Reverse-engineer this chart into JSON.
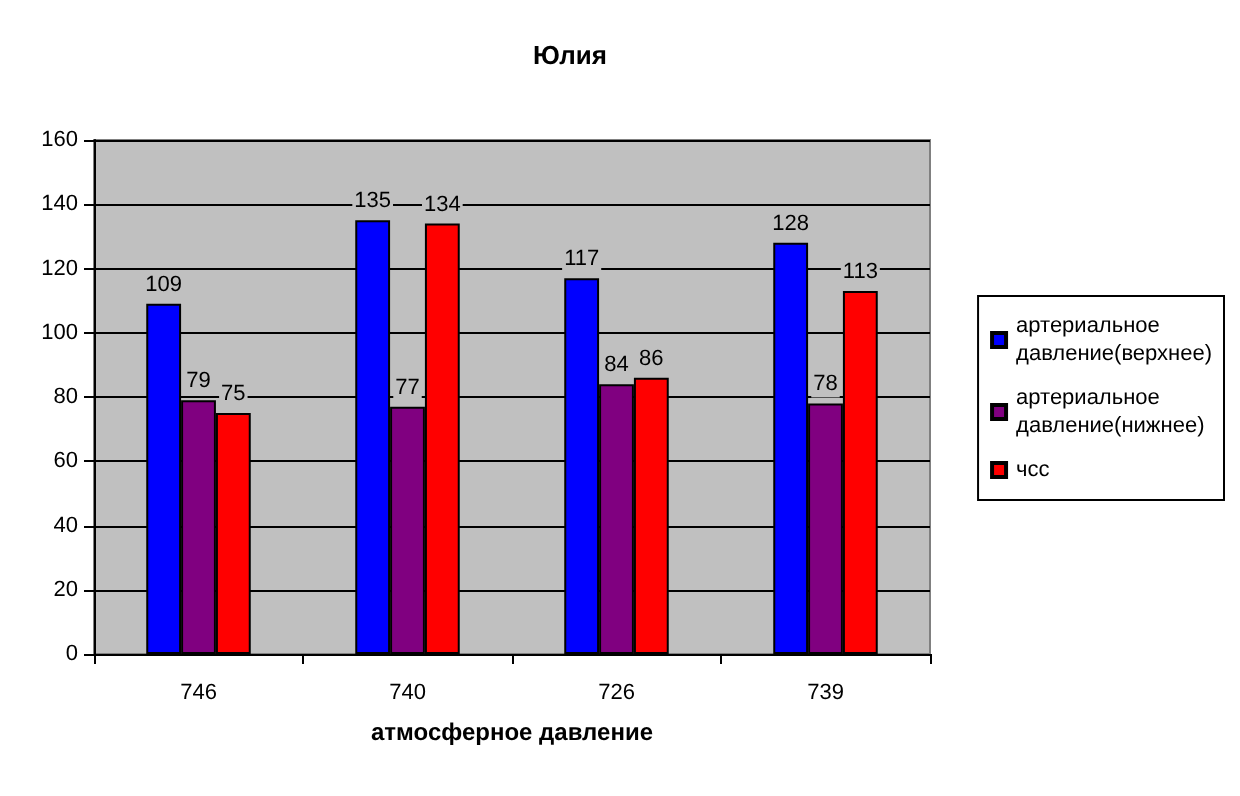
{
  "chart_data": {
    "type": "bar",
    "title": "Юлия",
    "xlabel": "атмосферное давление",
    "categories": [
      "746",
      "740",
      "726",
      "739"
    ],
    "series": [
      {
        "name": "артериальное давление(верхнее)",
        "color": "#0000ff",
        "values": [
          109,
          135,
          117,
          128
        ]
      },
      {
        "name": "артериальное давление(нижнее)",
        "color": "#800080",
        "values": [
          79,
          77,
          84,
          78
        ]
      },
      {
        "name": "чсс",
        "color": "#ff0000",
        "values": [
          75,
          134,
          86,
          113
        ]
      }
    ],
    "ylim": [
      0,
      160
    ],
    "yticks": [
      0,
      20,
      40,
      60,
      80,
      100,
      120,
      140,
      160
    ],
    "grid": "y",
    "legend": "right",
    "data_labels": true
  }
}
